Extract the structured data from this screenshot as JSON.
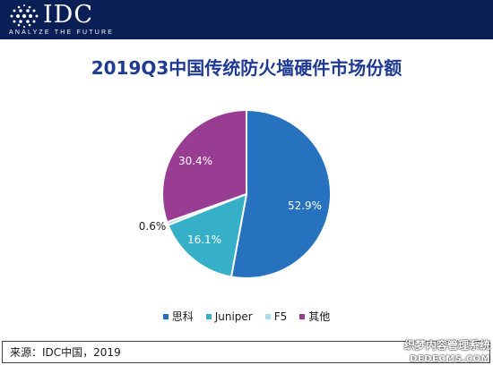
{
  "header": {
    "logo_text": "IDC",
    "tagline": "ANALYZE THE FUTURE"
  },
  "chart_data": {
    "type": "pie",
    "title": "2019Q3中国传统防火墙硬件市场份额",
    "slices": [
      {
        "name": "思科",
        "value": 52.9,
        "label": "52.9%",
        "color": "#2672be"
      },
      {
        "name": "Juniper",
        "value": 16.1,
        "label": "16.1%",
        "color": "#36afc8"
      },
      {
        "name": "F5",
        "value": 0.6,
        "label": "0.6%",
        "color": "#a5dcea"
      },
      {
        "name": "其他",
        "value": 30.4,
        "label": "30.4%",
        "color": "#993d92"
      }
    ],
    "legend_position": "bottom",
    "start_angle_deg": 0,
    "direction": "clockwise"
  },
  "footer": {
    "source": "来源：IDC中国，2019"
  },
  "watermark": {
    "line1": "织梦内容管理系统",
    "line2": "DEDECMS.COM"
  }
}
